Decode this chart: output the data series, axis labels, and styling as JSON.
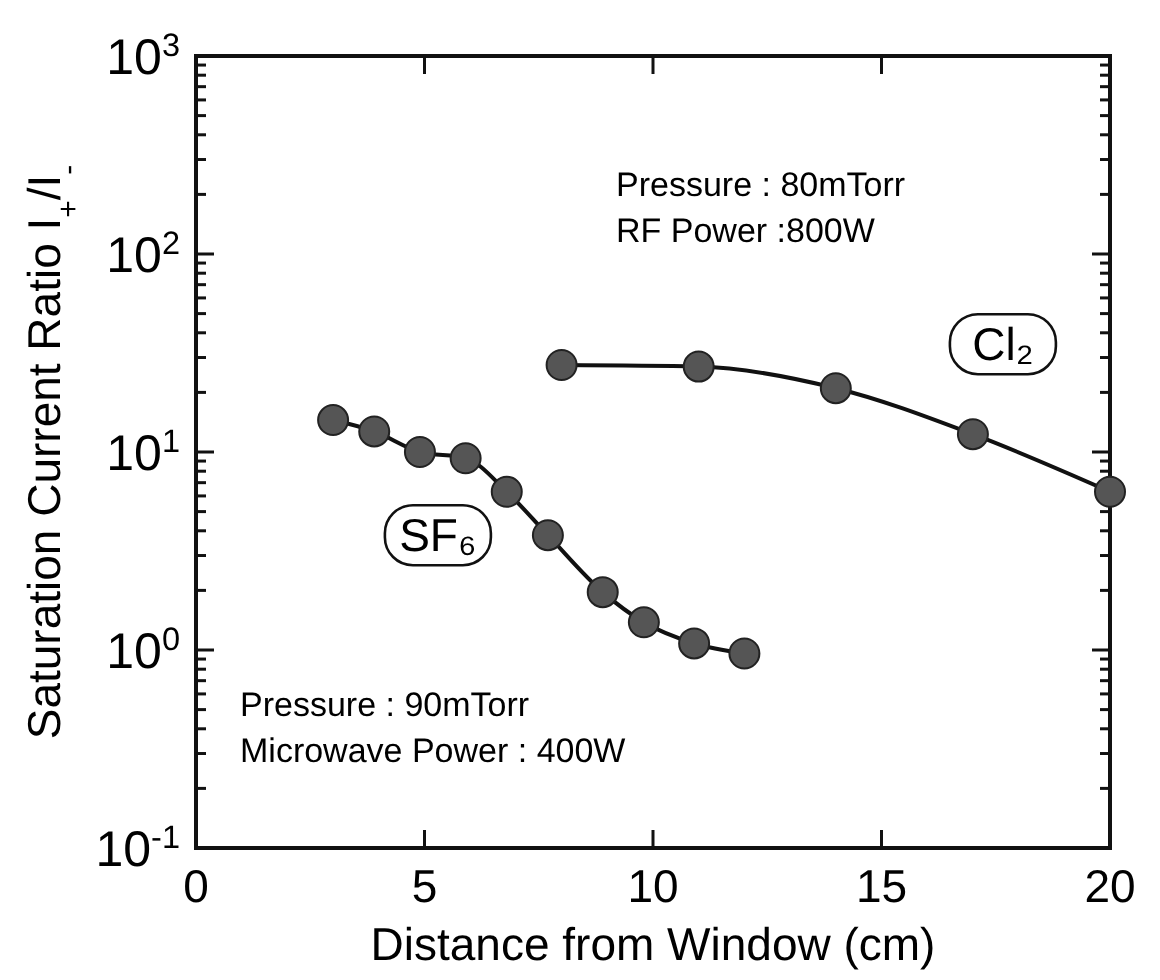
{
  "chart_data": {
    "type": "line",
    "xlabel": "Distance from Window (cm)",
    "ylabel": "Saturation Current Ratio  I$_{+}$/I$_{-}$",
    "log": true,
    "marker": "circle",
    "line_style": "solid",
    "grid": false,
    "xlim": [
      0,
      20
    ],
    "xticks": [
      0,
      5,
      10,
      15,
      20
    ],
    "ylim": [
      0.1,
      1000
    ],
    "yticks": [
      {
        "value": 0.1,
        "label": "10$^{-1}$"
      },
      {
        "value": 0.2,
        "label": null
      },
      {
        "value": 0.3,
        "label": null
      },
      {
        "value": 0.4,
        "label": null
      },
      {
        "value": 0.5,
        "label": null
      },
      {
        "value": 0.6,
        "label": null
      },
      {
        "value": 0.7,
        "label": null
      },
      {
        "value": 0.8,
        "label": null
      },
      {
        "value": 0.9,
        "label": null
      },
      {
        "value": 1,
        "label": "10$^{0}$"
      },
      {
        "value": 2,
        "label": null
      },
      {
        "value": 3,
        "label": null
      },
      {
        "value": 4,
        "label": null
      },
      {
        "value": 5,
        "label": null
      },
      {
        "value": 6,
        "label": null
      },
      {
        "value": 7,
        "label": null
      },
      {
        "value": 8,
        "label": null
      },
      {
        "value": 9,
        "label": null
      },
      {
        "value": 10,
        "label": "10$^{1}$"
      },
      {
        "value": 20,
        "label": null
      },
      {
        "value": 30,
        "label": null
      },
      {
        "value": 40,
        "label": null
      },
      {
        "value": 50,
        "label": null
      },
      {
        "value": 60,
        "label": null
      },
      {
        "value": 70,
        "label": null
      },
      {
        "value": 80,
        "label": null
      },
      {
        "value": 90,
        "label": null
      },
      {
        "value": 100,
        "label": "10$^{2}$"
      },
      {
        "value": 200,
        "label": null
      },
      {
        "value": 300,
        "label": null
      },
      {
        "value": 400,
        "label": null
      },
      {
        "value": 500,
        "label": null
      },
      {
        "value": 600,
        "label": null
      },
      {
        "value": 700,
        "label": null
      },
      {
        "value": 800,
        "label": null
      },
      {
        "value": 900,
        "label": null
      },
      {
        "value": 1000,
        "label": "10$^{3}$"
      }
    ],
    "series": [
      {
        "name": "Cl₂",
        "color": "#555555",
        "x": [
          8,
          11,
          14,
          17,
          20
        ],
        "values": [
          27.5,
          27,
          21,
          12.3,
          6.3
        ]
      },
      {
        "name": "SF₆",
        "color": "#555555",
        "x": [
          3,
          3.9,
          4.9,
          5.9,
          6.8,
          7.7,
          8.9,
          9.8,
          10.9,
          12
        ],
        "values": [
          14.5,
          12.7,
          10,
          9.3,
          6.3,
          3.8,
          1.96,
          1.38,
          1.08,
          0.96
        ]
      }
    ],
    "annotations": [
      "Pressure : 80mTorr",
      "RF Power :800W",
      "Pressure : 90mTorr",
      "Microwave Power : 400W"
    ]
  }
}
